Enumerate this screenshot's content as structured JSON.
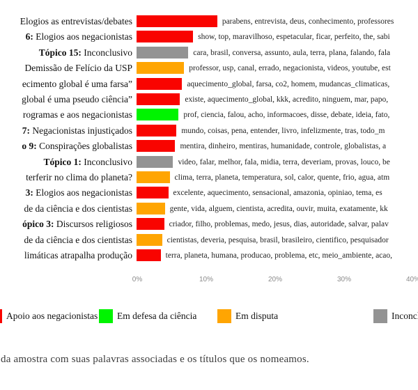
{
  "chart_data": {
    "type": "bar",
    "orientation": "horizontal",
    "title": "",
    "xlabel": "",
    "ylabel": "",
    "xlim": [
      0,
      40
    ],
    "x_tick_labels": [
      "0%",
      "10%",
      "20%",
      "30%",
      "40%"
    ],
    "grid": false,
    "legend_position": "bottom",
    "legend": [
      {
        "key": "apoio",
        "label": "Apoio aos negacionistas",
        "color": "#f90400"
      },
      {
        "key": "defesa",
        "label": "Em defesa da ciência",
        "color": "#00f400"
      },
      {
        "key": "disputa",
        "label": "Em disputa",
        "color": "#ffa502"
      },
      {
        "key": "inconclusivo",
        "label": "Inconclusivo",
        "color": "#939393"
      }
    ],
    "rows": [
      {
        "label_bold": "",
        "label": "Elogios as entrevistas/debates",
        "value": 11.7,
        "category": "apoio",
        "words": "parabens, entrevista, deus, conhecimento, professores"
      },
      {
        "label_bold": "6:",
        "label": " Elogios aos negacionistas",
        "value": 8.2,
        "category": "apoio",
        "words": "show, top, maravilhoso, espetacular, ficar, perfeito, the, sabi"
      },
      {
        "label_bold": "Tópico 15:",
        "label": " Inconclusivo",
        "value": 7.5,
        "category": "inconclusivo",
        "words": "cara, brasil, conversa, assunto, aula, terra, plana, falando, fala"
      },
      {
        "label_bold": "",
        "label": "Demissão de Felício da USP",
        "value": 6.9,
        "category": "disputa",
        "words": "professor, usp, canal, errado, negacionista, videos, youtube, est"
      },
      {
        "label_bold": "",
        "label": "ecimento global é uma farsa”",
        "value": 6.6,
        "category": "apoio",
        "words": "aquecimento_global, farsa, co2, homem, mudancas_climaticas,"
      },
      {
        "label_bold": "",
        "label": "global é uma pseudo ciência”",
        "value": 6.3,
        "category": "apoio",
        "words": "existe, aquecimento_global, kkk, acredito, ninguem, mar, papo,"
      },
      {
        "label_bold": "",
        "label": "rogramas e aos negacionistas",
        "value": 6.1,
        "category": "defesa",
        "words": "prof, ciencia, falou, acho, informacoes, disse, debate, ideia, fato,"
      },
      {
        "label_bold": "7:",
        "label": " Negacionistas injustiçados",
        "value": 5.8,
        "category": "apoio",
        "words": "mundo, coisas, pena, entender, livro, infelizmente, tras, todo_m"
      },
      {
        "label_bold": "o 9:",
        "label": " Conspirações globalistas",
        "value": 5.6,
        "category": "apoio",
        "words": "mentira, dinheiro, mentiras, humanidade, controle, globalistas, a"
      },
      {
        "label_bold": "Tópico 1:",
        "label": " Inconclusivo",
        "value": 5.3,
        "category": "inconclusivo",
        "words": "video, falar, melhor, fala, midia, terra, deveriam, provas, louco, be"
      },
      {
        "label_bold": "",
        "label": "terferir no clima do planeta?",
        "value": 4.8,
        "category": "disputa",
        "words": "clima, terra, planeta, temperatura, sol, calor, quente, frio, agua, atm"
      },
      {
        "label_bold": "3:",
        "label": " Elogios aos negacionistas",
        "value": 4.6,
        "category": "apoio",
        "words": "excelente, aquecimento, sensacional, amazonia, opiniao, tema, es"
      },
      {
        "label_bold": "",
        "label": "de da ciência e dos cientistas",
        "value": 4.1,
        "category": "disputa",
        "words": "gente, vida, alguem, cientista, acredita, ouvir, muita, exatamente, kk"
      },
      {
        "label_bold": "ópico 3:",
        "label": " Discursos religiosos",
        "value": 4.0,
        "category": "apoio",
        "words": "criador, filho, problemas, medo, jesus, dias, autoridade, salvar, palav"
      },
      {
        "label_bold": "",
        "label": "de da ciência e dos cientistas",
        "value": 3.7,
        "category": "disputa",
        "words": "cientistas, deveria, pesquisa, brasil, brasileiro, cientifico, pesquisador"
      },
      {
        "label_bold": "",
        "label": "limáticas atrapalha produção",
        "value": 3.5,
        "category": "apoio",
        "words": "terra, planeta, humana, producao, problema, etc, meio_ambiente, acao,"
      }
    ]
  },
  "caption": "da amostra com suas palavras associadas e os títulos que os nomeamos."
}
